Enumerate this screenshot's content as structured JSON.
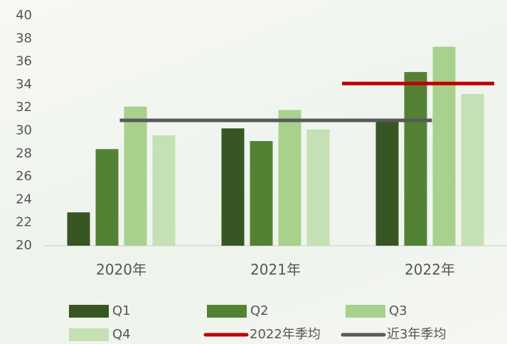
{
  "chart_data": {
    "type": "bar",
    "categories": [
      "2020年",
      "2021年",
      "2022年"
    ],
    "series": [
      {
        "name": "Q1",
        "color": "#375623",
        "values": [
          22.9,
          30.2,
          30.9
        ]
      },
      {
        "name": "Q2",
        "color": "#548235",
        "values": [
          28.4,
          29.1,
          35.1
        ]
      },
      {
        "name": "Q3",
        "color": "#a9d18e",
        "values": [
          32.1,
          31.8,
          37.3
        ]
      },
      {
        "name": "Q4",
        "color": "#c5e0b4",
        "values": [
          29.6,
          30.1,
          33.2
        ]
      }
    ],
    "reference_lines": [
      {
        "name": "2022年季均",
        "color": "#c00000",
        "value": 34.1
      },
      {
        "name": "近3年季均",
        "color": "#595959",
        "value": 30.9
      }
    ],
    "ylim": [
      20,
      40
    ],
    "yticks": [
      20,
      22,
      24,
      26,
      28,
      30,
      32,
      34,
      36,
      38,
      40
    ]
  }
}
